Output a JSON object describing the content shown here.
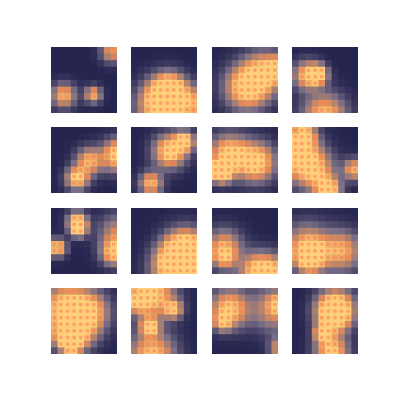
{
  "figure": {
    "rows": 4,
    "cols": 4,
    "colors": {
      "background": "#ffffff",
      "dark": "#24244f",
      "mid": "#7a6f86",
      "warm": "#e2925a",
      "bright": "#ffd07a",
      "dot": "#ff7a55"
    },
    "tiles": [
      {
        "pattern": "blob-left-mid"
      },
      {
        "pattern": "ring-open-top"
      },
      {
        "pattern": "curve-bottom"
      },
      {
        "pattern": "swirl-right"
      },
      {
        "pattern": "zigzag-left"
      },
      {
        "pattern": "diagonal-mid"
      },
      {
        "pattern": "hook-center"
      },
      {
        "pattern": "band-top-right"
      },
      {
        "pattern": "loop-center"
      },
      {
        "pattern": "diagonal-cross"
      },
      {
        "pattern": "blob-left"
      },
      {
        "pattern": "diagonal-down"
      },
      {
        "pattern": "cluster-left"
      },
      {
        "pattern": "full-bright"
      },
      {
        "pattern": "scatter"
      },
      {
        "pattern": "corner-left"
      }
    ]
  }
}
